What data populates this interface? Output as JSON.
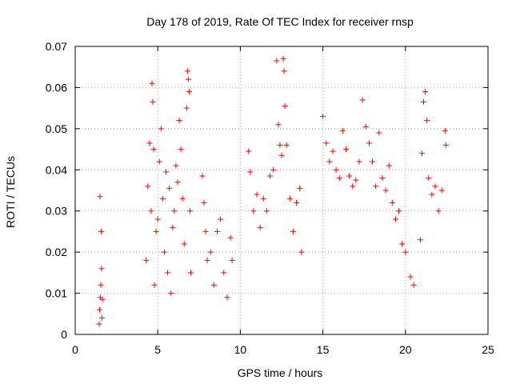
{
  "chart_data": {
    "type": "scatter",
    "title": "Day 178 of 2019, Rate Of TEC Index for receiver rnsp",
    "xlabel": "GPS time / hours",
    "ylabel": "ROTI / TECUs",
    "xlim": [
      0,
      25
    ],
    "ylim": [
      0,
      0.07
    ],
    "xticks": [
      0,
      5,
      10,
      15,
      20,
      25
    ],
    "xtick_labels": [
      "0",
      "5",
      "10",
      "15",
      "20",
      "25"
    ],
    "yticks": [
      0,
      0.01,
      0.02,
      0.03,
      0.04,
      0.05,
      0.06,
      0.07
    ],
    "ytick_labels": [
      "0",
      "0.01",
      "0.02",
      "0.03",
      "0.04",
      "0.05",
      "0.06",
      "0.07"
    ],
    "grid": true,
    "marker": "+",
    "series": [
      {
        "name": "ROTI",
        "color": "#ff0000",
        "points": [
          [
            1.45,
            0.0025
          ],
          [
            1.48,
            0.006
          ],
          [
            1.5,
            0.0335
          ],
          [
            1.52,
            0.009
          ],
          [
            1.55,
            0.012
          ],
          [
            1.58,
            0.025
          ],
          [
            1.6,
            0.016
          ],
          [
            1.62,
            0.004
          ],
          [
            1.65,
            0.0085
          ],
          [
            4.3,
            0.018
          ],
          [
            4.4,
            0.036
          ],
          [
            4.5,
            0.0465
          ],
          [
            4.6,
            0.03
          ],
          [
            4.65,
            0.061
          ],
          [
            4.7,
            0.0565
          ],
          [
            4.75,
            0.045
          ],
          [
            4.8,
            0.012
          ],
          [
            4.9,
            0.025
          ],
          [
            5.0,
            0.028
          ],
          [
            5.1,
            0.042
          ],
          [
            5.2,
            0.05
          ],
          [
            5.3,
            0.033
          ],
          [
            5.4,
            0.02
          ],
          [
            5.5,
            0.0395
          ],
          [
            5.6,
            0.015
          ],
          [
            5.7,
            0.0355
          ],
          [
            5.8,
            0.01
          ],
          [
            5.9,
            0.026
          ],
          [
            6.0,
            0.03
          ],
          [
            6.1,
            0.041
          ],
          [
            6.2,
            0.037
          ],
          [
            6.3,
            0.052
          ],
          [
            6.4,
            0.045
          ],
          [
            6.5,
            0.033
          ],
          [
            6.6,
            0.022
          ],
          [
            6.75,
            0.055
          ],
          [
            6.8,
            0.064
          ],
          [
            6.85,
            0.062
          ],
          [
            6.9,
            0.059
          ],
          [
            6.95,
            0.03
          ],
          [
            7.0,
            0.015
          ],
          [
            7.7,
            0.0385
          ],
          [
            7.8,
            0.032
          ],
          [
            7.9,
            0.025
          ],
          [
            8.0,
            0.018
          ],
          [
            8.2,
            0.02
          ],
          [
            8.4,
            0.012
          ],
          [
            8.6,
            0.025
          ],
          [
            8.8,
            0.028
          ],
          [
            9.0,
            0.015
          ],
          [
            9.2,
            0.009
          ],
          [
            9.4,
            0.0235
          ],
          [
            9.5,
            0.018
          ],
          [
            10.5,
            0.0445
          ],
          [
            10.6,
            0.0395
          ],
          [
            10.8,
            0.03
          ],
          [
            11.0,
            0.034
          ],
          [
            11.2,
            0.026
          ],
          [
            11.4,
            0.033
          ],
          [
            11.6,
            0.03
          ],
          [
            11.8,
            0.0385
          ],
          [
            12.0,
            0.04
          ],
          [
            12.2,
            0.0665
          ],
          [
            12.3,
            0.051
          ],
          [
            12.4,
            0.046
          ],
          [
            12.5,
            0.0435
          ],
          [
            12.6,
            0.067
          ],
          [
            12.65,
            0.064
          ],
          [
            12.7,
            0.0555
          ],
          [
            12.8,
            0.046
          ],
          [
            13.0,
            0.033
          ],
          [
            13.2,
            0.025
          ],
          [
            13.4,
            0.032
          ],
          [
            13.6,
            0.0355
          ],
          [
            13.7,
            0.02
          ],
          [
            15.0,
            0.053
          ],
          [
            15.2,
            0.0465
          ],
          [
            15.4,
            0.042
          ],
          [
            15.6,
            0.0445
          ],
          [
            15.8,
            0.04
          ],
          [
            16.0,
            0.038
          ],
          [
            16.2,
            0.0495
          ],
          [
            16.4,
            0.045
          ],
          [
            16.6,
            0.0385
          ],
          [
            16.8,
            0.036
          ],
          [
            17.0,
            0.0375
          ],
          [
            17.2,
            0.042
          ],
          [
            17.4,
            0.057
          ],
          [
            17.6,
            0.0505
          ],
          [
            17.8,
            0.0465
          ],
          [
            18.0,
            0.042
          ],
          [
            18.2,
            0.036
          ],
          [
            18.4,
            0.049
          ],
          [
            18.6,
            0.038
          ],
          [
            18.8,
            0.035
          ],
          [
            19.0,
            0.041
          ],
          [
            19.2,
            0.032
          ],
          [
            19.4,
            0.028
          ],
          [
            19.6,
            0.03
          ],
          [
            19.8,
            0.022
          ],
          [
            20.0,
            0.02
          ],
          [
            20.3,
            0.014
          ],
          [
            20.5,
            0.012
          ],
          [
            20.9,
            0.023
          ],
          [
            21.0,
            0.044
          ],
          [
            21.1,
            0.0565
          ],
          [
            21.2,
            0.059
          ],
          [
            21.3,
            0.052
          ],
          [
            21.4,
            0.038
          ],
          [
            21.6,
            0.034
          ],
          [
            21.8,
            0.036
          ],
          [
            22.0,
            0.03
          ],
          [
            22.2,
            0.035
          ],
          [
            22.4,
            0.0495
          ],
          [
            22.45,
            0.046
          ]
        ]
      }
    ]
  }
}
